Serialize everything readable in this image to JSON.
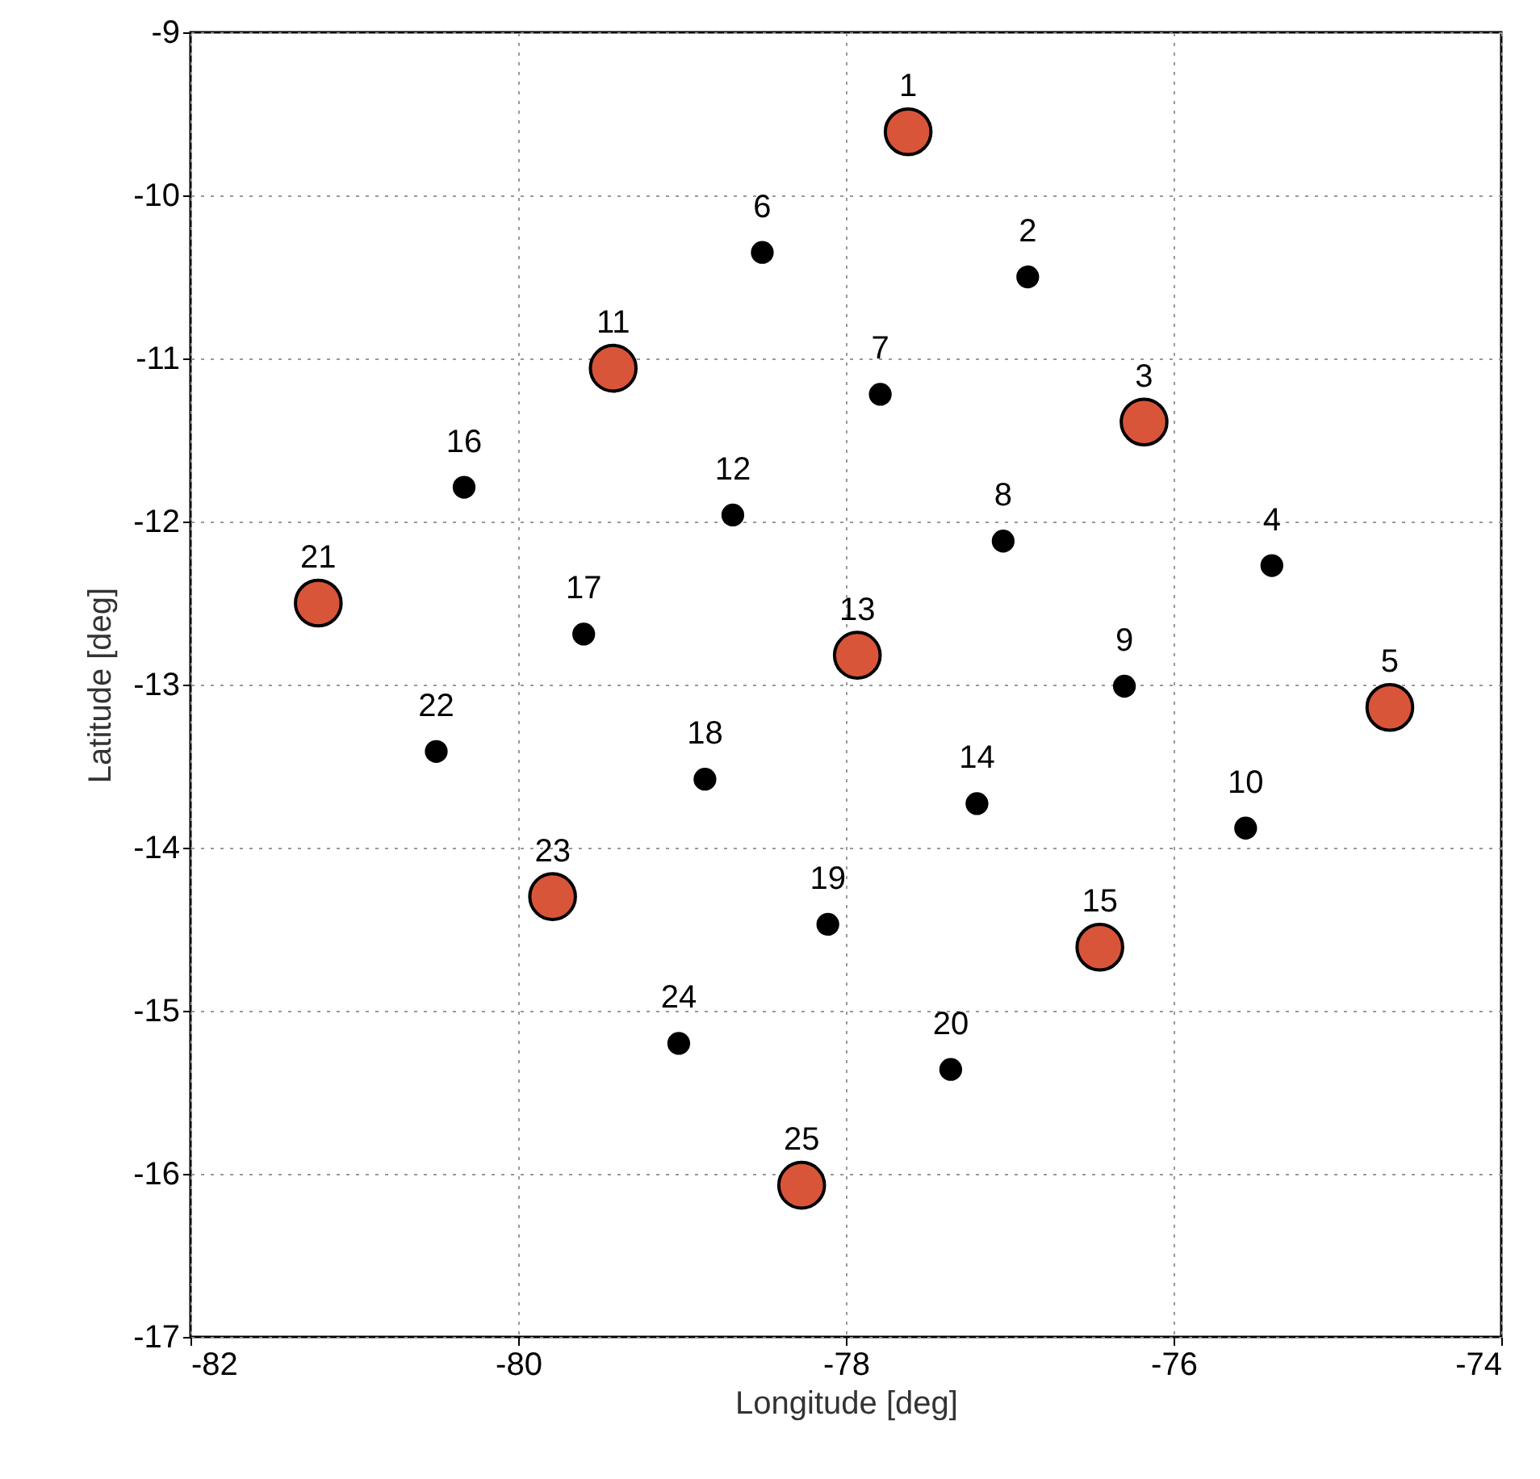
{
  "chart_data": {
    "type": "scatter",
    "xlabel": "Longitude [deg]",
    "ylabel": "Latitude [deg]",
    "xlim": [
      -82,
      -74
    ],
    "ylim": [
      -17,
      -9
    ],
    "xticks": [
      -82,
      -80,
      -78,
      -76,
      -74
    ],
    "yticks": [
      -17,
      -16,
      -15,
      -14,
      -13,
      -12,
      -11,
      -10,
      -9
    ],
    "grid": true,
    "marker": "circle",
    "series": [
      {
        "color": "#000000",
        "x": [
          -76.89,
          -75.4,
          -78.51,
          -77.79,
          -77.04,
          -76.3,
          -75.56,
          -78.69,
          -77.2,
          -80.33,
          -79.6,
          -78.86,
          -78.11,
          -77.36,
          -80.5,
          -79.02
        ],
        "values": [
          -10.5,
          -12.27,
          -10.35,
          -11.22,
          -12.12,
          -13.01,
          -13.88,
          -11.96,
          -13.73,
          -11.79,
          -12.69,
          -13.58,
          -14.47,
          -15.36,
          -13.41,
          -15.2
        ]
      },
      {
        "color": "#d9553a",
        "x": [
          -77.62,
          -76.18,
          -74.68,
          -79.42,
          -77.93,
          -76.45,
          -81.22,
          -79.79,
          -78.27
        ],
        "values": [
          -9.61,
          -11.39,
          -13.14,
          -11.06,
          -12.82,
          -14.61,
          -12.5,
          -14.3,
          -16.07
        ]
      }
    ],
    "annotations": [
      {
        "text": "1",
        "x": -77.62,
        "y": -9.61
      },
      {
        "text": "2",
        "x": -76.89,
        "y": -10.5
      },
      {
        "text": "3",
        "x": -76.18,
        "y": -11.39
      },
      {
        "text": "4",
        "x": -75.4,
        "y": -12.27
      },
      {
        "text": "5",
        "x": -74.68,
        "y": -13.14
      },
      {
        "text": "6",
        "x": -78.51,
        "y": -10.35
      },
      {
        "text": "7",
        "x": -77.79,
        "y": -11.22
      },
      {
        "text": "8",
        "x": -77.04,
        "y": -12.12
      },
      {
        "text": "9",
        "x": -76.3,
        "y": -13.01
      },
      {
        "text": "10",
        "x": -75.56,
        "y": -13.88
      },
      {
        "text": "11",
        "x": -79.42,
        "y": -11.06
      },
      {
        "text": "12",
        "x": -78.69,
        "y": -11.96
      },
      {
        "text": "13",
        "x": -77.93,
        "y": -12.82
      },
      {
        "text": "14",
        "x": -77.2,
        "y": -13.73
      },
      {
        "text": "15",
        "x": -76.45,
        "y": -14.61
      },
      {
        "text": "16",
        "x": -80.33,
        "y": -11.79
      },
      {
        "text": "17",
        "x": -79.6,
        "y": -12.69
      },
      {
        "text": "18",
        "x": -78.86,
        "y": -13.58
      },
      {
        "text": "19",
        "x": -78.11,
        "y": -14.47
      },
      {
        "text": "20",
        "x": -77.36,
        "y": -15.36
      },
      {
        "text": "21",
        "x": -81.22,
        "y": -12.5
      },
      {
        "text": "22",
        "x": -80.5,
        "y": -13.41
      },
      {
        "text": "23",
        "x": -79.79,
        "y": -14.3
      },
      {
        "text": "24",
        "x": -79.02,
        "y": -15.2
      },
      {
        "text": "25",
        "x": -78.27,
        "y": -16.07
      }
    ]
  }
}
